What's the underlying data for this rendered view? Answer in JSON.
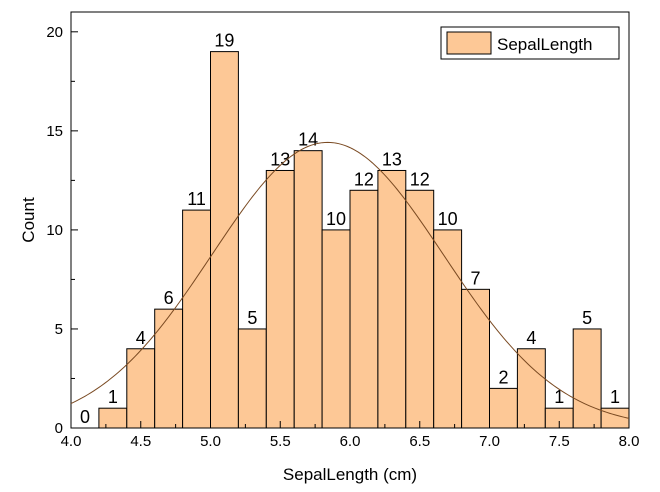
{
  "chart_data": {
    "type": "bar",
    "subtype": "histogram",
    "xlabel": "SepalLength (cm)",
    "ylabel": "Count",
    "xlim": [
      4.0,
      8.0
    ],
    "ylim": [
      0,
      21
    ],
    "xticks": [
      "4.0",
      "4.5",
      "5.0",
      "5.5",
      "6.0",
      "6.5",
      "7.0",
      "7.5",
      "8.0"
    ],
    "yticks": [
      "0",
      "5",
      "10",
      "15",
      "20"
    ],
    "bin_width": 0.2,
    "bin_starts": [
      4.0,
      4.2,
      4.4,
      4.6,
      4.8,
      5.0,
      5.2,
      5.4,
      5.6,
      5.8,
      6.0,
      6.2,
      6.4,
      6.6,
      6.8,
      7.0,
      7.2,
      7.4,
      7.6,
      7.8
    ],
    "values": [
      0,
      1,
      4,
      6,
      11,
      19,
      5,
      13,
      14,
      10,
      12,
      13,
      12,
      10,
      7,
      2,
      4,
      1,
      5,
      1
    ],
    "bar_labels": [
      "0",
      "1",
      "4",
      "6",
      "11",
      "19",
      "5",
      "13",
      "14",
      "10",
      "12",
      "13",
      "12",
      "10",
      "7",
      "2",
      "4",
      "1",
      "5",
      "1"
    ],
    "series": [
      {
        "name": "SepalLength"
      }
    ],
    "legend_position": "top-right",
    "grid": false,
    "fit_curve": {
      "type": "normal",
      "mean": 5.84,
      "sd": 0.83,
      "n": 150
    },
    "colors": {
      "bar_fill": "#fdc896",
      "bar_edge": "#000000",
      "curve": "#7a4a22"
    }
  }
}
